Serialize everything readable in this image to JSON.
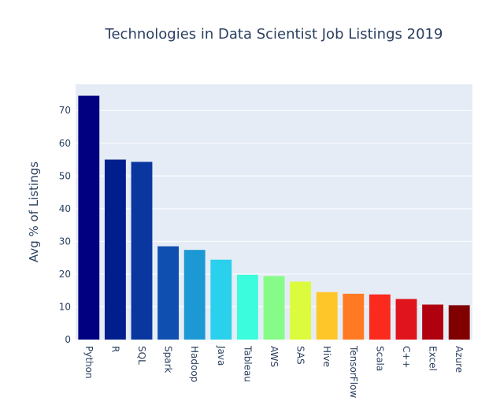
{
  "chart_data": {
    "type": "bar",
    "title": "Technologies in Data Scientist Job Listings 2019",
    "xlabel": "",
    "ylabel": "Avg % of Listings",
    "ylim": [
      0,
      78
    ],
    "yticks": [
      0,
      10,
      20,
      30,
      40,
      50,
      60,
      70
    ],
    "grid": true,
    "legend": "none",
    "background": "#e5ecf6",
    "categories": [
      "Python",
      "R",
      "SQL",
      "Spark",
      "Hadoop",
      "Java",
      "Tableau",
      "AWS",
      "SAS",
      "Hive",
      "TensorFlow",
      "Scala",
      "C++",
      "Excel",
      "Azure"
    ],
    "values": [
      74.5,
      55.0,
      54.3,
      28.5,
      27.4,
      24.4,
      19.8,
      19.4,
      17.7,
      14.5,
      14.0,
      13.8,
      12.4,
      10.7,
      10.5
    ],
    "colors": [
      "#000080",
      "#001e8c",
      "#0a36a0",
      "#0f4fb0",
      "#1c98d4",
      "#2ad0ec",
      "#3bfcdc",
      "#86fb88",
      "#dbfb3c",
      "#ffc62a",
      "#ff7a22",
      "#fb2a1e",
      "#e0141c",
      "#b00010",
      "#800000"
    ]
  }
}
